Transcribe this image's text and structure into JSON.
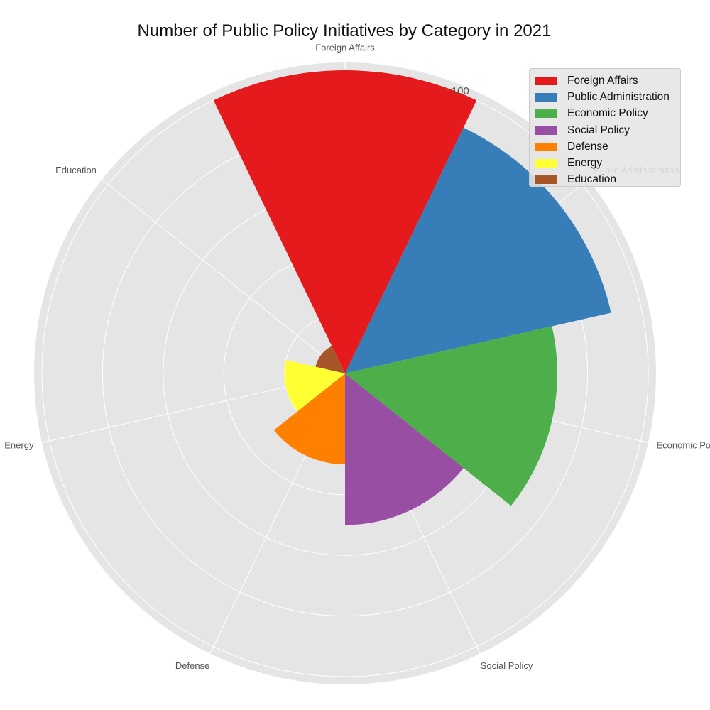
{
  "chart_data": {
    "type": "bar",
    "subtype": "polar",
    "title": "Number of Public Policy Initiatives by Category in 2021",
    "categories": [
      "Foreign Affairs",
      "Public Administration",
      "Economic Policy",
      "Social Policy",
      "Defense",
      "Energy",
      "Education"
    ],
    "values": [
      100,
      90,
      70,
      50,
      30,
      20,
      10
    ],
    "colors": [
      "#e41a1c",
      "#377eb8",
      "#4daf4a",
      "#984ea3",
      "#ff7f00",
      "#ffff33",
      "#a65628"
    ],
    "r_ticks": [
      100
    ],
    "grid": true,
    "legend_position": "top-right"
  }
}
